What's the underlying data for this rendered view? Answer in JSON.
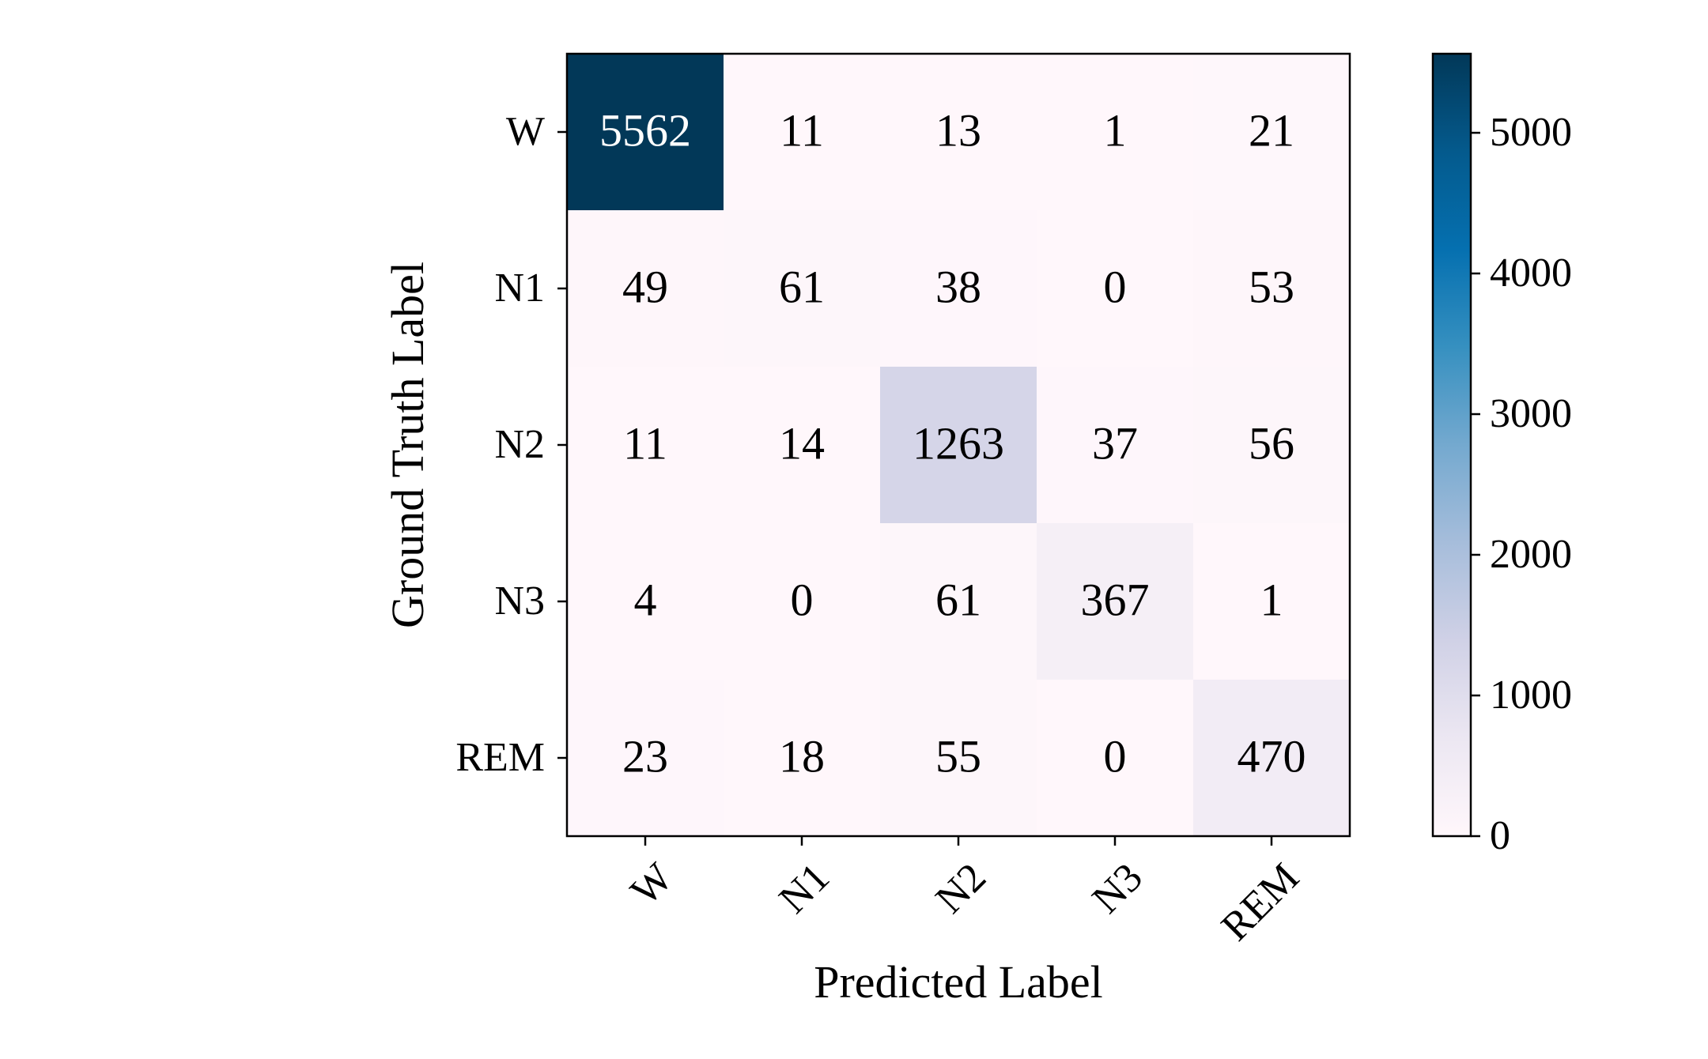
{
  "chart_data": {
    "type": "heatmap",
    "title": "",
    "xlabel": "Predicted Label",
    "ylabel": "Ground Truth Label",
    "x_categories": [
      "W",
      "N1",
      "N2",
      "N3",
      "REM"
    ],
    "y_categories": [
      "W",
      "N1",
      "N2",
      "N3",
      "REM"
    ],
    "values": [
      [
        5562,
        11,
        13,
        1,
        21
      ],
      [
        49,
        61,
        38,
        0,
        53
      ],
      [
        11,
        14,
        1263,
        37,
        56
      ],
      [
        4,
        0,
        61,
        367,
        1
      ],
      [
        23,
        18,
        55,
        0,
        470
      ]
    ],
    "colorbar": {
      "colormap": "PuBu",
      "range": [
        0,
        5562
      ],
      "ticks": [
        0,
        1000,
        2000,
        3000,
        4000,
        5000
      ],
      "tick_labels": [
        "0",
        "1000",
        "2000",
        "3000",
        "4000",
        "5000"
      ]
    },
    "colors": {
      "low": "#fff7fb",
      "high": "#023858",
      "text_dark": "#000000",
      "text_light": "#ffffff"
    }
  }
}
